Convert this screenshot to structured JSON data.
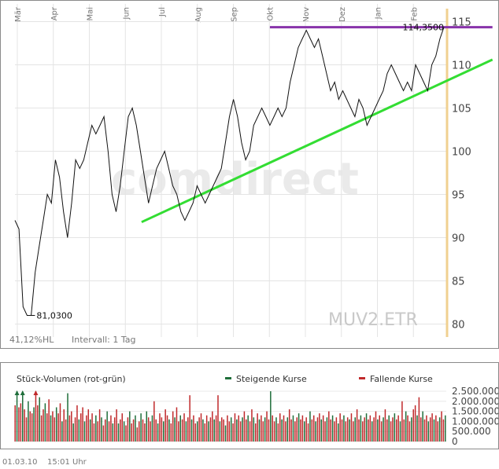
{
  "chart_data": [
    {
      "type": "line",
      "ticker": "MUV2.ETR",
      "watermark": "comdirect",
      "months": [
        "Mär",
        "Apr",
        "Mai",
        "Jun",
        "Jul",
        "Aug",
        "Sep",
        "Okt",
        "Nov",
        "Dez",
        "Jan",
        "Feb"
      ],
      "yticks": [
        80,
        85,
        90,
        95,
        100,
        105,
        110,
        115
      ],
      "ylim": [
        78.5,
        116.5
      ],
      "low_label": "81,0300",
      "high_label": "114,3500",
      "high_value": 114.35,
      "stat_label": "41,12%HL",
      "interval_label": "Intervall: 1 Tag",
      "price_series": [
        [
          0,
          92
        ],
        [
          2,
          91
        ],
        [
          4,
          82
        ],
        [
          6,
          81
        ],
        [
          8,
          81
        ],
        [
          10,
          86
        ],
        [
          12,
          89
        ],
        [
          14,
          92
        ],
        [
          16,
          95
        ],
        [
          18,
          94
        ],
        [
          20,
          99
        ],
        [
          22,
          97
        ],
        [
          24,
          93
        ],
        [
          26,
          90
        ],
        [
          28,
          94
        ],
        [
          30,
          99
        ],
        [
          32,
          98
        ],
        [
          34,
          99
        ],
        [
          36,
          101
        ],
        [
          38,
          103
        ],
        [
          40,
          102
        ],
        [
          42,
          103
        ],
        [
          44,
          104
        ],
        [
          46,
          100
        ],
        [
          48,
          95
        ],
        [
          50,
          93
        ],
        [
          52,
          96
        ],
        [
          54,
          100
        ],
        [
          56,
          104
        ],
        [
          58,
          105
        ],
        [
          60,
          103
        ],
        [
          62,
          100
        ],
        [
          64,
          97
        ],
        [
          66,
          94
        ],
        [
          68,
          96
        ],
        [
          70,
          98
        ],
        [
          72,
          99
        ],
        [
          74,
          100
        ],
        [
          76,
          98
        ],
        [
          78,
          96
        ],
        [
          80,
          95
        ],
        [
          82,
          93
        ],
        [
          84,
          92
        ],
        [
          86,
          93
        ],
        [
          88,
          94
        ],
        [
          90,
          96
        ],
        [
          92,
          95
        ],
        [
          94,
          94
        ],
        [
          96,
          95
        ],
        [
          98,
          96
        ],
        [
          100,
          97
        ],
        [
          102,
          98
        ],
        [
          104,
          101
        ],
        [
          106,
          104
        ],
        [
          108,
          106
        ],
        [
          110,
          104
        ],
        [
          112,
          101
        ],
        [
          114,
          99
        ],
        [
          116,
          100
        ],
        [
          118,
          103
        ],
        [
          120,
          104
        ],
        [
          122,
          105
        ],
        [
          124,
          104
        ],
        [
          126,
          103
        ],
        [
          128,
          104
        ],
        [
          130,
          105
        ],
        [
          132,
          104
        ],
        [
          134,
          105
        ],
        [
          136,
          108
        ],
        [
          138,
          110
        ],
        [
          140,
          112
        ],
        [
          142,
          113
        ],
        [
          144,
          114
        ],
        [
          146,
          113
        ],
        [
          148,
          112
        ],
        [
          150,
          113
        ],
        [
          152,
          111
        ],
        [
          154,
          109
        ],
        [
          156,
          107
        ],
        [
          158,
          108
        ],
        [
          160,
          106
        ],
        [
          162,
          107
        ],
        [
          164,
          106
        ],
        [
          166,
          105
        ],
        [
          168,
          104
        ],
        [
          170,
          106
        ],
        [
          172,
          105
        ],
        [
          174,
          103
        ],
        [
          176,
          104
        ],
        [
          178,
          105
        ],
        [
          180,
          106
        ],
        [
          182,
          107
        ],
        [
          184,
          109
        ],
        [
          186,
          110
        ],
        [
          188,
          109
        ],
        [
          190,
          108
        ],
        [
          192,
          107
        ],
        [
          194,
          108
        ],
        [
          196,
          107
        ],
        [
          198,
          110
        ],
        [
          200,
          109
        ],
        [
          202,
          108
        ],
        [
          204,
          107
        ],
        [
          206,
          110
        ],
        [
          208,
          111
        ],
        [
          210,
          113
        ],
        [
          212,
          114.35
        ]
      ],
      "trendlines": [
        {
          "color": "#33dd33",
          "from": [
            62.6,
            91.8
          ],
          "to": [
            236,
            110.6
          ]
        },
        {
          "color": "#8833aa",
          "from": [
            126,
            114.35
          ],
          "to": [
            236,
            114.35
          ]
        }
      ],
      "marker_color": "#f0d090"
    },
    {
      "type": "bar",
      "title": "Stück-Volumen (rot-grün)",
      "legend": [
        {
          "label": "Steigende Kurse",
          "color": "#1f6e3a"
        },
        {
          "label": "Fallende Kurse",
          "color": "#c0292b"
        }
      ],
      "yticks": [
        0,
        500000,
        1000000,
        1500000,
        2000000,
        2500000
      ],
      "ytick_labels": [
        "0",
        "500.000",
        "1.000.000",
        "1.500.000",
        "2.000.000",
        "2.500.000"
      ],
      "ylim": [
        0,
        2500000
      ],
      "volumes": [
        1800000,
        2600000,
        1700000,
        1900000,
        2600000,
        1600000,
        1200000,
        2000000,
        1500000,
        1400000,
        1700000,
        2600000,
        1800000,
        2200000,
        1300000,
        1600000,
        1900000,
        1400000,
        2100000,
        1300000,
        1500000,
        1200000,
        1700000,
        1400000,
        1900000,
        1000000,
        1600000,
        1100000,
        2400000,
        1300000,
        1500000,
        900000,
        1200000,
        1800000,
        1100000,
        1400000,
        1700000,
        1000000,
        1300000,
        1600000,
        1100000,
        1400000,
        900000,
        1300000,
        1000000,
        1600000,
        1200000,
        800000,
        1100000,
        1500000,
        1000000,
        1300000,
        900000,
        1200000,
        1600000,
        900000,
        1100000,
        1400000,
        1000000,
        800000,
        1200000,
        1500000,
        900000,
        1100000,
        1300000,
        700000,
        1000000,
        1400000,
        1100000,
        900000,
        1500000,
        1200000,
        1000000,
        1300000,
        2000000,
        1100000,
        900000,
        1400000,
        1200000,
        1000000,
        1600000,
        1300000,
        1100000,
        900000,
        1500000,
        1200000,
        1700000,
        1000000,
        1300000,
        1100000,
        1400000,
        1000000,
        1200000,
        2300000,
        1100000,
        1300000,
        900000,
        1000000,
        1200000,
        1400000,
        1100000,
        900000,
        1300000,
        1000000,
        1200000,
        1500000,
        1100000,
        1300000,
        2300000,
        1000000,
        1200000,
        1100000,
        800000,
        1300000,
        1000000,
        1200000,
        900000,
        1400000,
        1100000,
        1300000,
        1000000,
        1200000,
        1500000,
        1100000,
        1300000,
        1000000,
        1600000,
        1200000,
        900000,
        1400000,
        1100000,
        1300000,
        1000000,
        1200000,
        1500000,
        1100000,
        2500000,
        1300000,
        1000000,
        1200000,
        900000,
        1400000,
        1100000,
        1300000,
        1000000,
        1200000,
        1600000,
        1100000,
        1300000,
        1000000,
        1200000,
        1400000,
        1100000,
        1300000,
        1000000,
        1200000,
        900000,
        1500000,
        1100000,
        1300000,
        1000000,
        1200000,
        1400000,
        1100000,
        1300000,
        1000000,
        1200000,
        1500000,
        1100000,
        1300000,
        1000000,
        1200000,
        900000,
        1400000,
        1100000,
        1300000,
        1000000,
        1200000,
        1100000,
        1400000,
        1000000,
        1200000,
        1600000,
        1100000,
        1300000,
        1000000,
        1200000,
        1400000,
        1100000,
        1300000,
        1000000,
        1200000,
        1500000,
        1100000,
        1300000,
        1000000,
        1200000,
        1600000,
        1100000,
        1300000,
        1000000,
        1200000,
        1400000,
        1100000,
        1300000,
        1000000,
        2000000,
        1100000,
        1500000,
        1300000,
        1000000,
        1200000,
        1600000,
        1800000,
        1300000,
        2200000,
        1200000,
        1500000,
        1100000,
        1300000,
        1000000,
        1200000,
        1400000,
        1100000,
        1300000,
        1000000,
        1200000,
        1500000,
        1100000,
        1300000
      ]
    }
  ],
  "footer": {
    "date": "01.03.10",
    "time": "15:01 Uhr"
  }
}
